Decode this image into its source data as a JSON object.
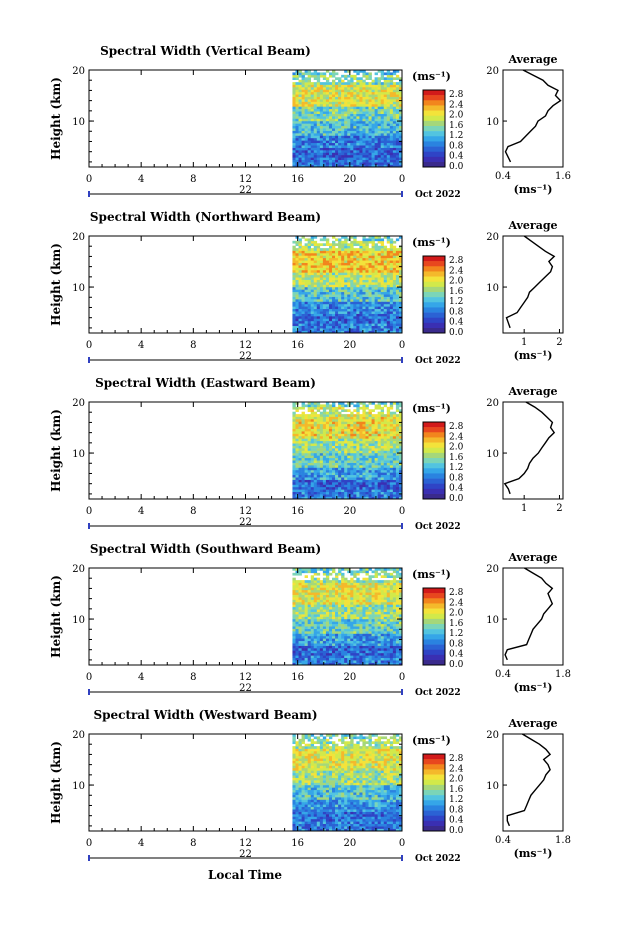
{
  "figure": {
    "xlabel": "Local Time",
    "date_label": "Oct 2022",
    "colorbar": {
      "unit": "(ms⁻¹)",
      "tick_labels": [
        "2.8",
        "2.4",
        "2.0",
        "1.6",
        "1.2",
        "0.8",
        "0.4",
        "0.0"
      ],
      "colors": [
        "#d21a1a",
        "#e8471e",
        "#f2851d",
        "#f4b92b",
        "#f3e33a",
        "#d2e94a",
        "#a5d77a",
        "#7bd5b8",
        "#52c4e0",
        "#35a6e8",
        "#2a83e0",
        "#2b62d4",
        "#2f44c6",
        "#3a2fb2"
      ],
      "under_color": "#3a2a8c"
    }
  },
  "chart_data": [
    {
      "type": "heatmap",
      "title": "Spectral Width (Vertical Beam)",
      "ylabel": "Height (km)",
      "x_ticks": [
        "0",
        "4",
        "8",
        "12",
        "16",
        "20",
        "0"
      ],
      "y_ticks": [
        "20",
        "10"
      ],
      "xlim": [
        0,
        24
      ],
      "ylim": [
        1,
        20
      ],
      "date_marker": "22",
      "data_start_hour": 15.6,
      "profile_bands": [
        {
          "h0": 1,
          "h1": 3,
          "value": 0.5
        },
        {
          "h0": 3,
          "h1": 5,
          "value": 0.4
        },
        {
          "h0": 5,
          "h1": 7,
          "value": 0.6
        },
        {
          "h0": 7,
          "h1": 10,
          "value": 1.0
        },
        {
          "h0": 10,
          "h1": 13,
          "value": 1.3
        },
        {
          "h0": 13,
          "h1": 17,
          "value": 1.8
        },
        {
          "h0": 17,
          "h1": 19,
          "value": 1.4
        },
        {
          "h0": 19,
          "h1": 20,
          "value": 1.1
        }
      ],
      "average": {
        "title": "Average",
        "xlabel": "(ms⁻¹)",
        "x_ticks": [
          "0.4",
          "1.6"
        ],
        "y_ticks": [
          "20",
          "10"
        ],
        "xlim": [
          0.4,
          1.6
        ],
        "profile": [
          [
            2,
            0.55
          ],
          [
            3,
            0.5
          ],
          [
            4,
            0.45
          ],
          [
            5,
            0.5
          ],
          [
            6,
            0.75
          ],
          [
            7,
            0.85
          ],
          [
            8,
            0.95
          ],
          [
            9,
            1.05
          ],
          [
            10,
            1.1
          ],
          [
            11,
            1.25
          ],
          [
            12,
            1.3
          ],
          [
            13,
            1.4
          ],
          [
            14,
            1.55
          ],
          [
            15,
            1.45
          ],
          [
            16,
            1.5
          ],
          [
            17,
            1.3
          ],
          [
            18,
            1.2
          ],
          [
            19,
            1.0
          ],
          [
            20,
            0.8
          ]
        ]
      }
    },
    {
      "type": "heatmap",
      "title": "Spectral Width (Northward Beam)",
      "ylabel": "Height (km)",
      "x_ticks": [
        "0",
        "4",
        "8",
        "12",
        "16",
        "20",
        "0"
      ],
      "y_ticks": [
        "20",
        "10"
      ],
      "xlim": [
        0,
        24
      ],
      "ylim": [
        1,
        20
      ],
      "date_marker": "22",
      "data_start_hour": 15.6,
      "profile_bands": [
        {
          "h0": 1,
          "h1": 3,
          "value": 0.6
        },
        {
          "h0": 3,
          "h1": 5,
          "value": 0.5
        },
        {
          "h0": 5,
          "h1": 7,
          "value": 0.7
        },
        {
          "h0": 7,
          "h1": 10,
          "value": 1.1
        },
        {
          "h0": 10,
          "h1": 13,
          "value": 1.6
        },
        {
          "h0": 13,
          "h1": 17,
          "value": 2.0
        },
        {
          "h0": 17,
          "h1": 19,
          "value": 1.6
        },
        {
          "h0": 19,
          "h1": 20,
          "value": 1.3
        }
      ],
      "average": {
        "title": "Average",
        "xlabel": "(ms⁻¹)",
        "x_ticks": [
          "1",
          "2"
        ],
        "y_ticks": [
          "20",
          "10"
        ],
        "xlim": [
          0.4,
          2.1
        ],
        "profile": [
          [
            2,
            0.6
          ],
          [
            3,
            0.55
          ],
          [
            4,
            0.5
          ],
          [
            5,
            0.8
          ],
          [
            6,
            0.9
          ],
          [
            7,
            1.0
          ],
          [
            8,
            1.1
          ],
          [
            9,
            1.15
          ],
          [
            10,
            1.3
          ],
          [
            11,
            1.45
          ],
          [
            12,
            1.6
          ],
          [
            13,
            1.75
          ],
          [
            14,
            1.8
          ],
          [
            15,
            1.7
          ],
          [
            16,
            1.85
          ],
          [
            17,
            1.6
          ],
          [
            18,
            1.4
          ],
          [
            19,
            1.2
          ],
          [
            20,
            1.0
          ]
        ]
      }
    },
    {
      "type": "heatmap",
      "title": "Spectral Width (Eastward Beam)",
      "ylabel": "Height (km)",
      "x_ticks": [
        "0",
        "4",
        "8",
        "12",
        "16",
        "20",
        "0"
      ],
      "y_ticks": [
        "20",
        "10"
      ],
      "xlim": [
        0,
        24
      ],
      "ylim": [
        1,
        20
      ],
      "date_marker": "22",
      "data_start_hour": 15.6,
      "profile_bands": [
        {
          "h0": 1,
          "h1": 3,
          "value": 0.6
        },
        {
          "h0": 3,
          "h1": 5,
          "value": 0.4
        },
        {
          "h0": 5,
          "h1": 7,
          "value": 0.8
        },
        {
          "h0": 7,
          "h1": 10,
          "value": 1.2
        },
        {
          "h0": 10,
          "h1": 13,
          "value": 1.5
        },
        {
          "h0": 13,
          "h1": 17,
          "value": 1.9
        },
        {
          "h0": 17,
          "h1": 19,
          "value": 1.7
        },
        {
          "h0": 19,
          "h1": 20,
          "value": 1.3
        }
      ],
      "average": {
        "title": "Average",
        "xlabel": "",
        "x_ticks": [
          "1",
          "2"
        ],
        "y_ticks": [
          "20",
          "10"
        ],
        "xlim": [
          0.4,
          2.1
        ],
        "profile": [
          [
            2,
            0.6
          ],
          [
            3,
            0.55
          ],
          [
            4,
            0.45
          ],
          [
            5,
            0.85
          ],
          [
            6,
            1.0
          ],
          [
            7,
            1.1
          ],
          [
            8,
            1.15
          ],
          [
            9,
            1.25
          ],
          [
            10,
            1.4
          ],
          [
            11,
            1.5
          ],
          [
            12,
            1.6
          ],
          [
            13,
            1.7
          ],
          [
            14,
            1.85
          ],
          [
            15,
            1.75
          ],
          [
            16,
            1.8
          ],
          [
            17,
            1.65
          ],
          [
            18,
            1.5
          ],
          [
            19,
            1.3
          ],
          [
            20,
            1.05
          ]
        ]
      }
    },
    {
      "type": "heatmap",
      "title": "Spectral Width (Southward Beam)",
      "ylabel": "Height (km)",
      "x_ticks": [
        "0",
        "4",
        "8",
        "12",
        "16",
        "20",
        "0"
      ],
      "y_ticks": [
        "20",
        "10"
      ],
      "xlim": [
        0,
        24
      ],
      "ylim": [
        1,
        20
      ],
      "date_marker": "22",
      "data_start_hour": 15.6,
      "profile_bands": [
        {
          "h0": 1,
          "h1": 3,
          "value": 0.6
        },
        {
          "h0": 3,
          "h1": 5,
          "value": 0.4
        },
        {
          "h0": 5,
          "h1": 7,
          "value": 0.8
        },
        {
          "h0": 7,
          "h1": 10,
          "value": 1.2
        },
        {
          "h0": 10,
          "h1": 13,
          "value": 1.5
        },
        {
          "h0": 13,
          "h1": 17,
          "value": 1.8
        },
        {
          "h0": 17,
          "h1": 19,
          "value": 1.5
        },
        {
          "h0": 19,
          "h1": 20,
          "value": 1.2
        }
      ],
      "average": {
        "title": "Average",
        "xlabel": "(ms⁻¹)",
        "x_ticks": [
          "0.4",
          "1.8"
        ],
        "y_ticks": [
          "20",
          "10"
        ],
        "xlim": [
          0.4,
          1.8
        ],
        "profile": [
          [
            2,
            0.5
          ],
          [
            3,
            0.45
          ],
          [
            4,
            0.5
          ],
          [
            5,
            0.95
          ],
          [
            6,
            1.0
          ],
          [
            7,
            1.05
          ],
          [
            8,
            1.1
          ],
          [
            9,
            1.2
          ],
          [
            10,
            1.3
          ],
          [
            11,
            1.35
          ],
          [
            12,
            1.45
          ],
          [
            13,
            1.55
          ],
          [
            14,
            1.5
          ],
          [
            15,
            1.45
          ],
          [
            16,
            1.55
          ],
          [
            17,
            1.4
          ],
          [
            18,
            1.3
          ],
          [
            19,
            1.1
          ],
          [
            20,
            0.9
          ]
        ]
      }
    },
    {
      "type": "heatmap",
      "title": "Spectral Width (Westward Beam)",
      "ylabel": "Height (km)",
      "x_ticks": [
        "0",
        "4",
        "8",
        "12",
        "16",
        "20",
        "0"
      ],
      "y_ticks": [
        "20",
        "10"
      ],
      "xlim": [
        0,
        24
      ],
      "ylim": [
        1,
        20
      ],
      "date_marker": "22",
      "data_start_hour": 15.6,
      "profile_bands": [
        {
          "h0": 1,
          "h1": 3,
          "value": 0.6
        },
        {
          "h0": 3,
          "h1": 5,
          "value": 0.5
        },
        {
          "h0": 5,
          "h1": 7,
          "value": 0.8
        },
        {
          "h0": 7,
          "h1": 10,
          "value": 1.1
        },
        {
          "h0": 10,
          "h1": 13,
          "value": 1.5
        },
        {
          "h0": 13,
          "h1": 17,
          "value": 1.8
        },
        {
          "h0": 17,
          "h1": 19,
          "value": 1.5
        },
        {
          "h0": 19,
          "h1": 20,
          "value": 1.2
        }
      ],
      "average": {
        "title": "Average",
        "xlabel": "(ms⁻¹)",
        "x_ticks": [
          "0.4",
          "1.8"
        ],
        "y_ticks": [
          "20",
          "10"
        ],
        "xlim": [
          0.4,
          1.8
        ],
        "profile": [
          [
            2,
            0.55
          ],
          [
            3,
            0.5
          ],
          [
            4,
            0.5
          ],
          [
            5,
            0.9
          ],
          [
            6,
            0.95
          ],
          [
            7,
            1.0
          ],
          [
            8,
            1.05
          ],
          [
            9,
            1.15
          ],
          [
            10,
            1.25
          ],
          [
            11,
            1.35
          ],
          [
            12,
            1.4
          ],
          [
            13,
            1.5
          ],
          [
            14,
            1.45
          ],
          [
            15,
            1.35
          ],
          [
            16,
            1.5
          ],
          [
            17,
            1.4
          ],
          [
            18,
            1.25
          ],
          [
            19,
            1.05
          ],
          [
            20,
            0.85
          ]
        ]
      }
    }
  ]
}
